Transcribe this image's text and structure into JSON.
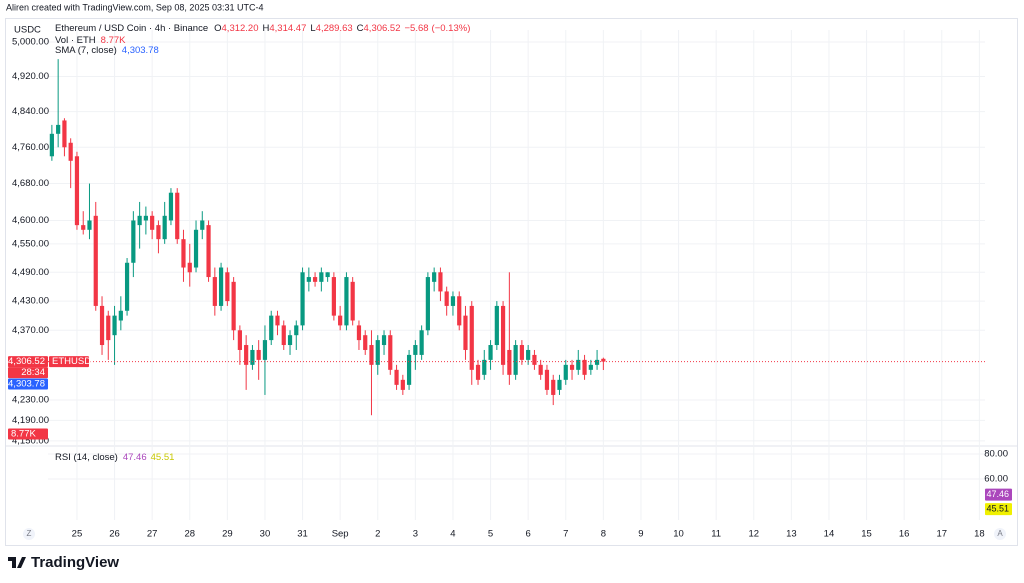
{
  "header": {
    "attribution": "Aliren created with TradingView.com, Sep 08, 2025 03:31 UTC-4"
  },
  "chart_data": {
    "type": "candlestick",
    "currency": "USDC",
    "title": "Ethereum / USD Coin · 4h · Binance",
    "up_color": "#089981",
    "down_color": "#f23645",
    "legend": {
      "names": [
        "O",
        "H",
        "L",
        "C"
      ],
      "values": [
        4312.2,
        4314.47,
        4289.63,
        4306.52
      ],
      "value_labels": [
        "4,312.20",
        "4,314.47",
        "4,289.63",
        "4,306.52"
      ],
      "change": [
        -5.68,
        -0.13
      ],
      "change_labels": [
        "−5.68",
        "(−0.13%)"
      ]
    },
    "volume": {
      "name": "Vol · ETH",
      "value": 8770,
      "value_label": "8.77K"
    },
    "sma": {
      "name": "SMA (7, close)",
      "value": 4303.78,
      "value_label": "4,303.78",
      "color": "#2962ff"
    },
    "last_price": {
      "value": 4306.52,
      "label": "4,306.52",
      "symbol": "ETHUSDC",
      "countdown": "28:34"
    },
    "log_scale": true,
    "grid": true,
    "ylim": [
      4142,
      5028
    ],
    "yticks": [
      {
        "value": 5000,
        "label": "5,000.00"
      },
      {
        "value": 4920,
        "label": "4,920.00"
      },
      {
        "value": 4840,
        "label": "4,840.00"
      },
      {
        "value": 4760,
        "label": "4,760.00"
      },
      {
        "value": 4680,
        "label": "4,680.00"
      },
      {
        "value": 4600,
        "label": "4,600.00"
      },
      {
        "value": 4550,
        "label": "4,550.00"
      },
      {
        "value": 4490,
        "label": "4,490.00"
      },
      {
        "value": 4430,
        "label": "4,430.00"
      },
      {
        "value": 4370,
        "label": "4,370.00"
      },
      {
        "value": 4230,
        "label": "4,230.00"
      },
      {
        "value": 4190,
        "label": "4,190.00"
      },
      {
        "value": 4150,
        "label": "4,150.00"
      }
    ],
    "xlim": [
      24.23,
      49.15
    ],
    "xticks": [
      {
        "value": 25,
        "label": "25"
      },
      {
        "value": 26,
        "label": "26"
      },
      {
        "value": 27,
        "label": "27"
      },
      {
        "value": 28,
        "label": "28"
      },
      {
        "value": 29,
        "label": "29"
      },
      {
        "value": 30,
        "label": "30"
      },
      {
        "value": 31,
        "label": "31"
      },
      {
        "value": 32,
        "label": "Sep"
      },
      {
        "value": 33,
        "label": "2"
      },
      {
        "value": 34,
        "label": "3"
      },
      {
        "value": 35,
        "label": "4"
      },
      {
        "value": 36,
        "label": "5"
      },
      {
        "value": 37,
        "label": "6"
      },
      {
        "value": 38,
        "label": "7"
      },
      {
        "value": 39,
        "label": "8"
      },
      {
        "value": 40,
        "label": "9"
      },
      {
        "value": 41,
        "label": "10"
      },
      {
        "value": 42,
        "label": "11"
      },
      {
        "value": 43,
        "label": "12"
      },
      {
        "value": 44,
        "label": "13"
      },
      {
        "value": 45,
        "label": "14"
      },
      {
        "value": 46,
        "label": "15"
      },
      {
        "value": 47,
        "label": "16"
      },
      {
        "value": 48,
        "label": "17"
      },
      {
        "value": 49,
        "label": "18"
      }
    ],
    "x": [
      24.333,
      24.5,
      24.667,
      24.833,
      25,
      25.167,
      25.333,
      25.5,
      25.667,
      25.833,
      26,
      26.167,
      26.333,
      26.5,
      26.667,
      26.833,
      27,
      27.167,
      27.333,
      27.5,
      27.667,
      27.833,
      28,
      28.167,
      28.333,
      28.5,
      28.667,
      28.833,
      29,
      29.167,
      29.333,
      29.5,
      29.667,
      29.833,
      30,
      30.167,
      30.333,
      30.5,
      30.667,
      30.833,
      31,
      31.167,
      31.333,
      31.5,
      31.667,
      31.833,
      32,
      32.167,
      32.333,
      32.5,
      32.667,
      32.833,
      33,
      33.167,
      33.333,
      33.5,
      33.667,
      33.833,
      34,
      34.167,
      34.333,
      34.5,
      34.667,
      34.833,
      35,
      35.167,
      35.333,
      35.5,
      35.667,
      35.833,
      36,
      36.167,
      36.333,
      36.5,
      36.667,
      36.833,
      37,
      37.167,
      37.333,
      37.5,
      37.667,
      37.833,
      38,
      38.167,
      38.333,
      38.5,
      38.667,
      38.833,
      39
    ],
    "open": [
      4740,
      4790,
      4820,
      4770,
      4740,
      4590,
      4580,
      4610,
      4420,
      4400,
      4360,
      4390,
      4410,
      4510,
      4590,
      4600,
      4610,
      4590,
      4560,
      4600,
      4660,
      4560,
      4510,
      4500,
      4580,
      4590,
      4480,
      4420,
      4490,
      4470,
      4370,
      4340,
      4300,
      4330,
      4310,
      4350,
      4400,
      4380,
      4340,
      4360,
      4380,
      4470,
      4480,
      4470,
      4480,
      4480,
      4400,
      4380,
      4470,
      4380,
      4360,
      4340,
      4300,
      4340,
      4360,
      4290,
      4270,
      4260,
      4320,
      4320,
      4370,
      4470,
      4490,
      4450,
      4420,
      4440,
      4400,
      4420,
      4300,
      4280,
      4310,
      4340,
      4420,
      4330,
      4280,
      4340,
      4310,
      4320,
      4300,
      4290,
      4270,
      4250,
      4270,
      4300,
      4290,
      4310,
      4290,
      4300,
      4312.2
    ],
    "high": [
      4810,
      4960,
      4825,
      4780,
      4750,
      4620,
      4680,
      4640,
      4440,
      4410,
      4420,
      4440,
      4520,
      4620,
      4640,
      4630,
      4620,
      4600,
      4640,
      4670,
      4670,
      4580,
      4550,
      4600,
      4620,
      4600,
      4500,
      4510,
      4500,
      4480,
      4380,
      4360,
      4340,
      4350,
      4380,
      4410,
      4410,
      4390,
      4370,
      4390,
      4500,
      4500,
      4490,
      4500,
      4490,
      4490,
      4420,
      4490,
      4480,
      4390,
      4370,
      4370,
      4360,
      4370,
      4370,
      4300,
      4280,
      4330,
      4350,
      4380,
      4490,
      4500,
      4500,
      4460,
      4450,
      4450,
      4420,
      4430,
      4310,
      4330,
      4350,
      4430,
      4430,
      4490,
      4350,
      4350,
      4340,
      4330,
      4310,
      4300,
      4280,
      4280,
      4310,
      4310,
      4330,
      4320,
      4310,
      4330,
      4314.47
    ],
    "low": [
      4730,
      4760,
      4740,
      4670,
      4580,
      4570,
      4560,
      4410,
      4320,
      4310,
      4300,
      4370,
      4400,
      4480,
      4540,
      4570,
      4560,
      4530,
      4550,
      4590,
      4550,
      4470,
      4460,
      4490,
      4560,
      4470,
      4400,
      4410,
      4420,
      4350,
      4300,
      4250,
      4290,
      4270,
      4240,
      4340,
      4360,
      4330,
      4320,
      4330,
      4370,
      4450,
      4460,
      4450,
      4470,
      4390,
      4370,
      4370,
      4380,
      4330,
      4320,
      4200,
      4280,
      4320,
      4280,
      4250,
      4240,
      4250,
      4290,
      4310,
      4360,
      4450,
      4430,
      4400,
      4400,
      4370,
      4310,
      4260,
      4260,
      4270,
      4290,
      4330,
      4280,
      4260,
      4270,
      4300,
      4300,
      4290,
      4270,
      4240,
      4220,
      4240,
      4260,
      4270,
      4280,
      4270,
      4280,
      4290,
      4289.63
    ],
    "close": [
      4790,
      4810,
      4760,
      4730,
      4590,
      4580,
      4600,
      4420,
      4340,
      4350,
      4400,
      4410,
      4510,
      4600,
      4610,
      4610,
      4580,
      4560,
      4610,
      4660,
      4560,
      4500,
      4490,
      4580,
      4600,
      4480,
      4420,
      4500,
      4430,
      4370,
      4330,
      4300,
      4330,
      4310,
      4350,
      4400,
      4380,
      4340,
      4360,
      4380,
      4490,
      4480,
      4470,
      4490,
      4490,
      4400,
      4380,
      4480,
      4390,
      4350,
      4330,
      4300,
      4350,
      4360,
      4290,
      4260,
      4250,
      4320,
      4340,
      4370,
      4480,
      4490,
      4450,
      4420,
      4440,
      4380,
      4330,
      4290,
      4270,
      4310,
      4340,
      4420,
      4300,
      4280,
      4340,
      4310,
      4330,
      4300,
      4280,
      4250,
      4240,
      4270,
      4300,
      4290,
      4310,
      4280,
      4300,
      4310,
      4306.52
    ],
    "rsi": {
      "name": "RSI (14, close)",
      "values": [
        47.46,
        45.51
      ],
      "value_labels": [
        "47.46",
        "45.51"
      ],
      "colors": [
        "#ab47bc",
        "#f0f000"
      ],
      "ylim": [
        27.2,
        85.6
      ],
      "yticks": [
        {
          "value": 80,
          "label": "80.00"
        },
        {
          "value": 60,
          "label": "60.00"
        }
      ]
    }
  },
  "controls": {
    "timezone": "Z",
    "auto_scale": "A"
  },
  "footer": {
    "brand": "TradingView"
  }
}
